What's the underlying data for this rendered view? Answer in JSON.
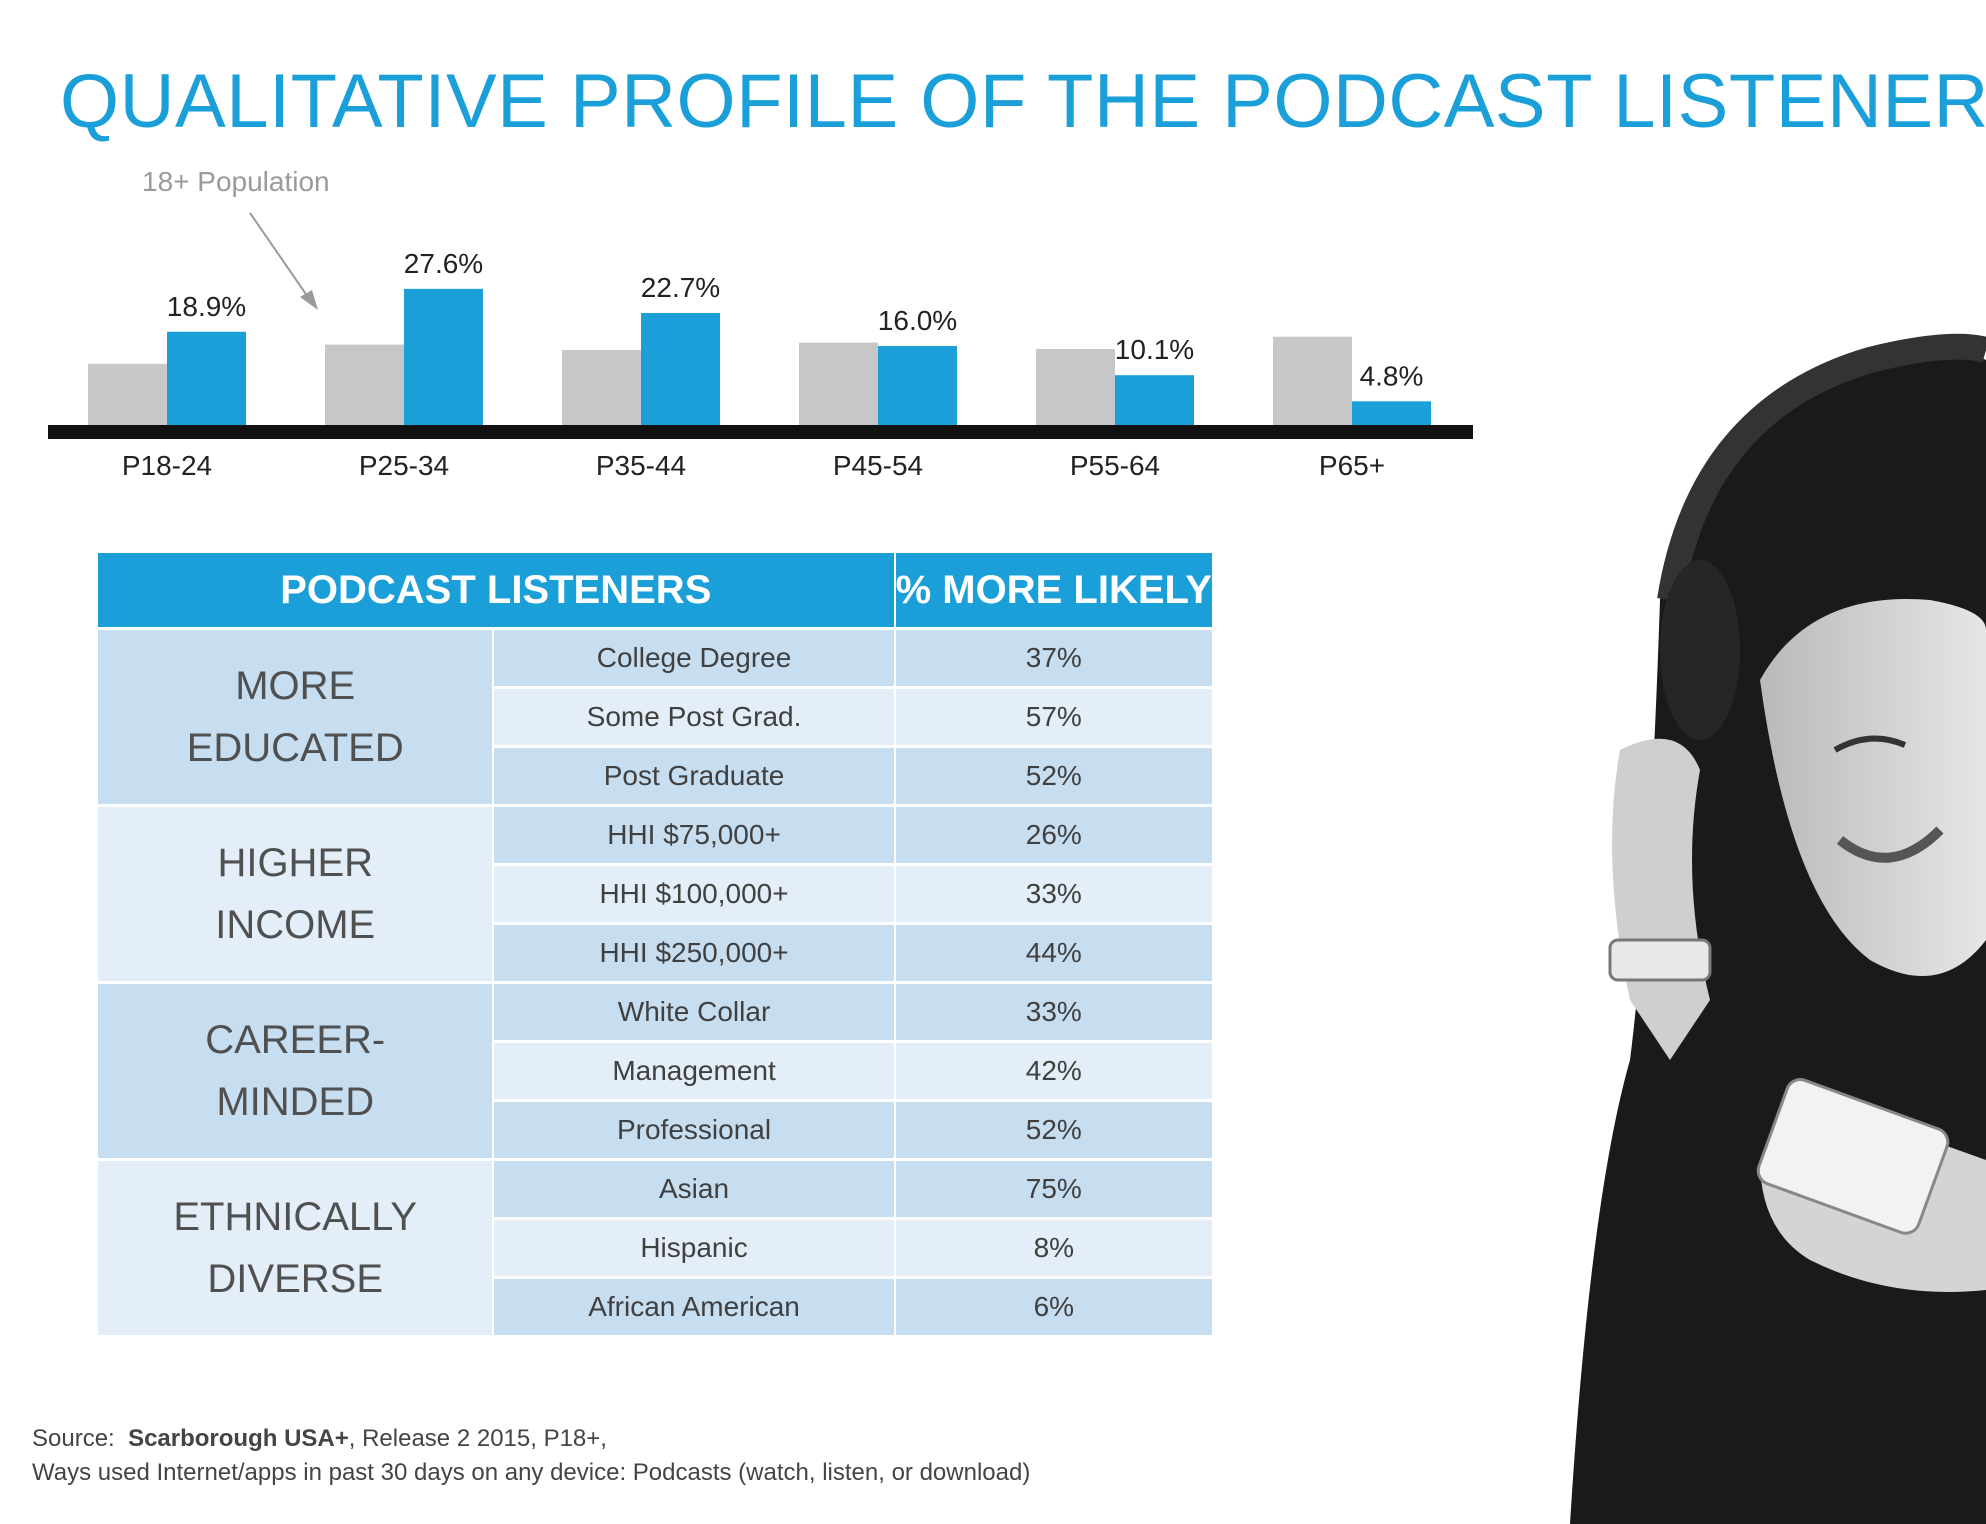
{
  "title": "QUALITATIVE PROFILE OF THE PODCAST LISTENER",
  "annotation": "18+ Population",
  "chart_data": {
    "type": "bar",
    "categories": [
      "P18-24",
      "P25-34",
      "P35-44",
      "P45-54",
      "P55-64",
      "P65+"
    ],
    "series": [
      {
        "name": "18+ Population",
        "values": [
          12.4,
          16.3,
          15.2,
          16.7,
          15.4,
          17.9
        ],
        "color": "#c6c7c9"
      },
      {
        "name": "",
        "values": [
          18.9,
          27.6,
          22.7,
          16.0,
          10.1,
          4.8
        ],
        "color": "#1a9fd9"
      }
    ],
    "data_labels": [
      "18.9%",
      "27.6%",
      "22.7%",
      "16.0%",
      "10.1%",
      "4.8%"
    ],
    "ylim": [
      0,
      30
    ],
    "grid": false
  },
  "table": {
    "headers": [
      "PODCAST LISTENERS",
      "% MORE LIKELY"
    ],
    "groups": [
      {
        "label_lines": [
          "MORE",
          "EDUCATED"
        ],
        "rows": [
          {
            "item": "College Degree",
            "value": "37%"
          },
          {
            "item": "Some Post Grad.",
            "value": "57%"
          },
          {
            "item": "Post Graduate",
            "value": "52%"
          }
        ]
      },
      {
        "label_lines": [
          "HIGHER",
          "INCOME"
        ],
        "rows": [
          {
            "item": "HHI $75,000+",
            "value": "26%"
          },
          {
            "item": "HHI $100,000+",
            "value": "33%"
          },
          {
            "item": "HHI $250,000+",
            "value": "44%"
          }
        ]
      },
      {
        "label_lines": [
          "CAREER-",
          "MINDED"
        ],
        "rows": [
          {
            "item": "White Collar",
            "value": "33%"
          },
          {
            "item": "Management",
            "value": "42%"
          },
          {
            "item": "Professional",
            "value": "52%"
          }
        ]
      },
      {
        "label_lines": [
          "ETHNICALLY",
          "DIVERSE"
        ],
        "rows": [
          {
            "item": "Asian",
            "value": "75%"
          },
          {
            "item": "Hispanic",
            "value": "8%"
          },
          {
            "item": "African American",
            "value": "6%"
          }
        ]
      }
    ]
  },
  "source": {
    "prefix": "Source:",
    "bold": "Scarborough USA+",
    "rest": ", Release 2 2015, P18+,",
    "line2": "Ways used Internet/apps in past 30 days on any device: Podcasts (watch, listen, or download)"
  }
}
